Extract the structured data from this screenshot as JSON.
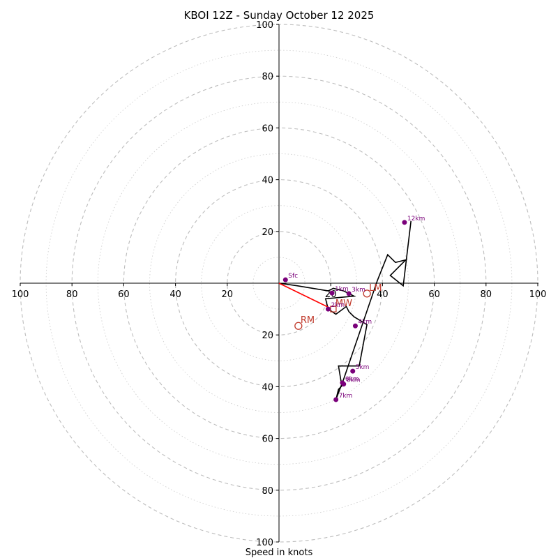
{
  "chart_data": {
    "type": "hodograph",
    "title": "KBOI 12Z - Sunday October 12 2025",
    "xlabel": "Speed in knots",
    "units": "knots",
    "range_max": 100,
    "rings_major": [
      20,
      40,
      60,
      80,
      100
    ],
    "rings_minor": [
      10,
      30,
      50,
      70,
      90
    ],
    "x_ticks": [
      -100,
      -80,
      -60,
      -40,
      -20,
      20,
      40,
      60,
      80,
      100
    ],
    "y_ticks": [
      -100,
      -80,
      -60,
      -40,
      -20,
      20,
      40,
      60,
      80,
      100
    ],
    "x_tick_labels": [
      "100",
      "80",
      "60",
      "40",
      "20",
      "20",
      "40",
      "60",
      "80",
      "100"
    ],
    "y_tick_labels": [
      "100",
      "80",
      "60",
      "40",
      "20",
      "20",
      "40",
      "60",
      "80",
      "100"
    ],
    "hodograph_line": [
      [
        0,
        0
      ],
      [
        7,
        -1
      ],
      [
        19,
        -3
      ],
      [
        21,
        -2
      ],
      [
        25,
        -3
      ],
      [
        29,
        -5
      ],
      [
        18,
        -6
      ],
      [
        19,
        -10
      ],
      [
        22,
        -12
      ],
      [
        26,
        -9
      ],
      [
        27,
        -11
      ],
      [
        29,
        -13
      ],
      [
        34,
        -16
      ],
      [
        31,
        -32
      ],
      [
        23,
        -32
      ],
      [
        24,
        -38
      ],
      [
        25,
        -39
      ],
      [
        23,
        -41
      ],
      [
        22,
        -45
      ],
      [
        25,
        -37
      ],
      [
        38,
        1
      ],
      [
        42,
        11
      ],
      [
        45,
        8
      ],
      [
        49,
        9
      ],
      [
        43,
        3
      ],
      [
        48,
        -1
      ],
      [
        51,
        24
      ]
    ],
    "height_points": [
      {
        "label": "Sfc",
        "u": 2.5,
        "v": 1.3
      },
      {
        "label": "1km",
        "u": 20.5,
        "v": -3.8
      },
      {
        "label": "2km",
        "u": 19.0,
        "v": -10.0
      },
      {
        "label": "3km",
        "u": 27.0,
        "v": -4.0
      },
      {
        "label": "4km",
        "u": 29.5,
        "v": -16.5
      },
      {
        "label": "5km",
        "u": 28.5,
        "v": -34.0
      },
      {
        "label": "6km",
        "u": 24.5,
        "v": -38.5
      },
      {
        "label": "8km",
        "u": 25.0,
        "v": -39.0
      },
      {
        "label": "7km",
        "u": 22.0,
        "v": -45.0
      },
      {
        "label": "12km",
        "u": 48.5,
        "v": 23.5
      }
    ],
    "shear_vector": {
      "from": [
        0,
        0
      ],
      "to": [
        19.5,
        -9.5
      ]
    },
    "storm_motion": [
      {
        "label": "RM",
        "u": 7.5,
        "v": -16.5,
        "marker": "circle"
      },
      {
        "label": "LM",
        "u": 34,
        "v": -4,
        "marker": "circle"
      },
      {
        "label": "MW",
        "u": 21,
        "v": -10,
        "marker": "square"
      }
    ],
    "colors": {
      "line": "#000000",
      "points": "#7a007a",
      "shear": "#ff0000",
      "motion": "#c0392b",
      "rings": "#bdbdbd"
    }
  }
}
